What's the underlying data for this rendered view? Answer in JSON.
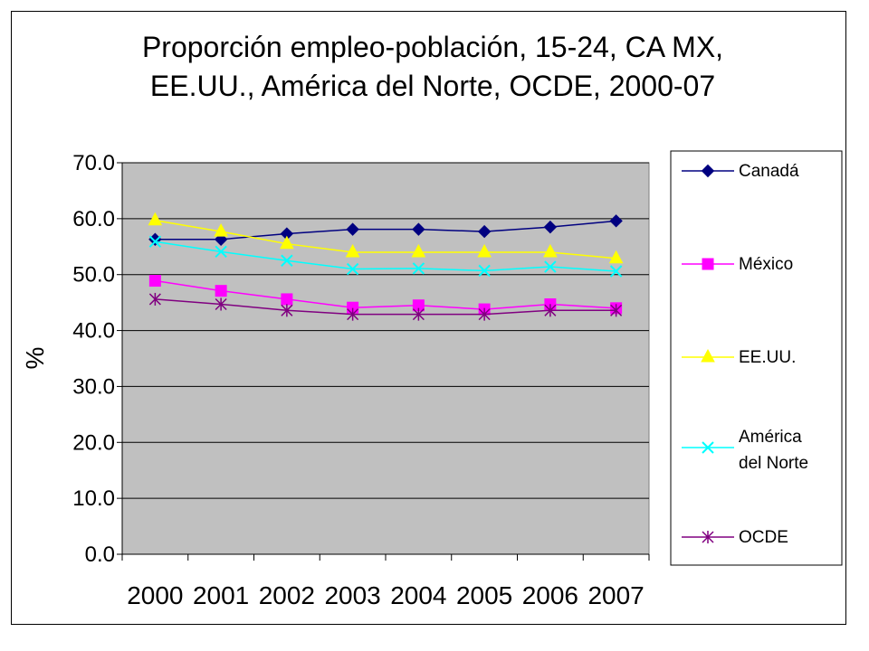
{
  "chart_data": {
    "type": "line",
    "title_lines": [
      "Proporción empleo-población, 15-24, CA MX,",
      "EE.UU.,  América del Norte, OCDE, 2000-07"
    ],
    "xlabel": "",
    "ylabel": "%",
    "categories": [
      "2000",
      "2001",
      "2002",
      "2003",
      "2004",
      "2005",
      "2006",
      "2007"
    ],
    "y_ticks": [
      "0.0",
      "10.0",
      "20.0",
      "30.0",
      "40.0",
      "50.0",
      "60.0",
      "70.0"
    ],
    "ylim": [
      0,
      70
    ],
    "grid": "horizontal",
    "plot_background": "#c0c0c0",
    "legend_position": "right",
    "series": [
      {
        "name": "Canadá",
        "color": "#000080",
        "marker": "diamond",
        "values": [
          56.3,
          56.3,
          57.3,
          58.1,
          58.1,
          57.7,
          58.5,
          59.6
        ]
      },
      {
        "name": "México",
        "color": "#ff00ff",
        "marker": "square",
        "values": [
          48.9,
          47.1,
          45.6,
          44.1,
          44.5,
          43.8,
          44.7,
          44.0
        ]
      },
      {
        "name": "EE.UU.",
        "color": "#ffff00",
        "marker": "triangle",
        "values": [
          59.7,
          57.7,
          55.5,
          54.0,
          54.0,
          54.0,
          54.0,
          52.9
        ]
      },
      {
        "name": "América del Norte",
        "label_lines": [
          "América",
          "del Norte"
        ],
        "color": "#00ffff",
        "marker": "x",
        "values": [
          55.9,
          54.1,
          52.5,
          51.0,
          51.1,
          50.7,
          51.4,
          50.6
        ]
      },
      {
        "name": "OCDE",
        "color": "#800080",
        "marker": "star",
        "values": [
          45.6,
          44.7,
          43.6,
          42.9,
          42.9,
          42.9,
          43.6,
          43.6
        ]
      }
    ]
  }
}
